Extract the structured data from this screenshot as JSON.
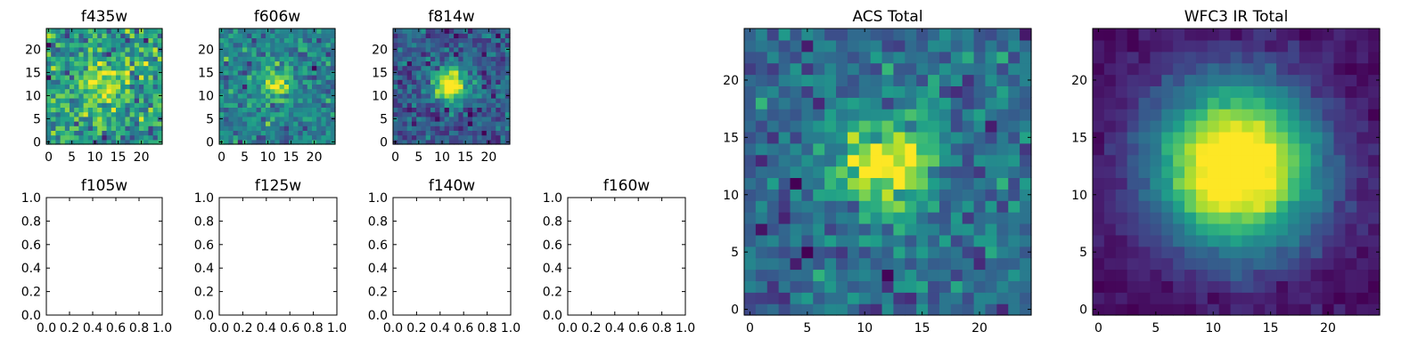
{
  "chart_data": [
    {
      "type": "heatmap",
      "title": "f435w",
      "xlim": [
        -0.5,
        24.5
      ],
      "ylim": [
        -0.5,
        24.5
      ],
      "xticks": [
        "0",
        "5",
        "10",
        "15",
        "20"
      ],
      "yticks": [
        "0",
        "5",
        "10",
        "15",
        "20"
      ],
      "grid_size": 25,
      "has_image": true,
      "peak": 0.6,
      "sigma": 4.0,
      "noise": 0.55
    },
    {
      "type": "heatmap",
      "title": "f606w",
      "xlim": [
        -0.5,
        24.5
      ],
      "ylim": [
        -0.5,
        24.5
      ],
      "xticks": [
        "0",
        "5",
        "10",
        "15",
        "20"
      ],
      "yticks": [
        "0",
        "5",
        "10",
        "15",
        "20"
      ],
      "grid_size": 25,
      "has_image": true,
      "peak": 1.1,
      "sigma": 2.5,
      "noise": 0.5
    },
    {
      "type": "heatmap",
      "title": "f814w",
      "xlim": [
        -0.5,
        24.5
      ],
      "ylim": [
        -0.5,
        24.5
      ],
      "xticks": [
        "0",
        "5",
        "10",
        "15",
        "20"
      ],
      "yticks": [
        "0",
        "5",
        "10",
        "15",
        "20"
      ],
      "grid_size": 25,
      "has_image": true,
      "peak": 1.2,
      "sigma": 2.5,
      "noise": 0.35
    },
    {
      "type": "heatmap",
      "title": "f105w",
      "xlim": [
        0,
        1
      ],
      "ylim": [
        0,
        1
      ],
      "xticks": [
        "0.0",
        "0.2",
        "0.4",
        "0.6",
        "0.8",
        "1.0"
      ],
      "yticks": [
        "0.0",
        "0.2",
        "0.4",
        "0.6",
        "0.8",
        "1.0"
      ],
      "has_image": false
    },
    {
      "type": "heatmap",
      "title": "f125w",
      "xlim": [
        0,
        1
      ],
      "ylim": [
        0,
        1
      ],
      "xticks": [
        "0.0",
        "0.2",
        "0.4",
        "0.6",
        "0.8",
        "1.0"
      ],
      "yticks": [
        "0.0",
        "0.2",
        "0.4",
        "0.6",
        "0.8",
        "1.0"
      ],
      "has_image": false
    },
    {
      "type": "heatmap",
      "title": "f140w",
      "xlim": [
        0,
        1
      ],
      "ylim": [
        0,
        1
      ],
      "xticks": [
        "0.0",
        "0.2",
        "0.4",
        "0.6",
        "0.8",
        "1.0"
      ],
      "yticks": [
        "0.0",
        "0.2",
        "0.4",
        "0.6",
        "0.8",
        "1.0"
      ],
      "has_image": false
    },
    {
      "type": "heatmap",
      "title": "f160w",
      "xlim": [
        0,
        1
      ],
      "ylim": [
        0,
        1
      ],
      "xticks": [
        "0.0",
        "0.2",
        "0.4",
        "0.6",
        "0.8",
        "1.0"
      ],
      "yticks": [
        "0.0",
        "0.2",
        "0.4",
        "0.6",
        "0.8",
        "1.0"
      ],
      "has_image": false
    },
    {
      "type": "heatmap",
      "title": "ACS Total",
      "xlim": [
        -0.5,
        24.5
      ],
      "ylim": [
        -0.5,
        24.5
      ],
      "xticks": [
        "0",
        "5",
        "10",
        "15",
        "20"
      ],
      "yticks": [
        "0",
        "5",
        "10",
        "15",
        "20"
      ],
      "grid_size": 25,
      "has_image": true,
      "peak": 0.9,
      "sigma": 3.0,
      "noise": 0.3
    },
    {
      "type": "heatmap",
      "title": "WFC3 IR Total",
      "xlim": [
        -0.5,
        24.5
      ],
      "ylim": [
        -0.5,
        24.5
      ],
      "xticks": [
        "0",
        "5",
        "10",
        "15",
        "20"
      ],
      "yticks": [
        "0",
        "5",
        "10",
        "15",
        "20"
      ],
      "grid_size": 25,
      "has_image": true,
      "peak": 1.0,
      "sigma": 5.0,
      "noise": 0.06
    }
  ],
  "colormap": "viridis",
  "colormap_stops": [
    "#440154",
    "#482878",
    "#3e4989",
    "#31688e",
    "#26828e",
    "#1f9e89",
    "#35b779",
    "#6ece58",
    "#b5de2b",
    "#fde725"
  ]
}
